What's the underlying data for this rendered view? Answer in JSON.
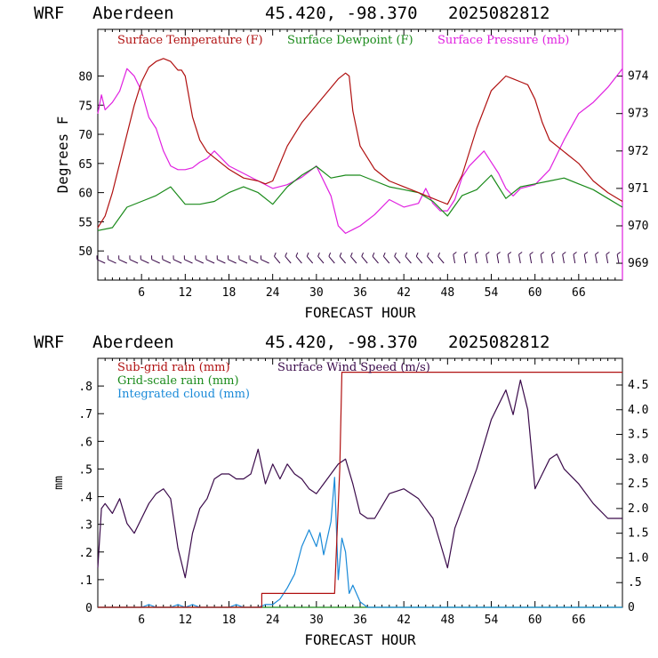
{
  "header": {
    "model": "WRF",
    "station": "Aberdeen",
    "coords": "45.420, -98.370",
    "run": "2025082812"
  },
  "colors": {
    "temperature": "#b01010",
    "dewpoint": "#1a8a1a",
    "pressure": "#e020e0",
    "subgrid_rain": "#b01010",
    "gridscale_rain": "#1a8a1a",
    "cloud": "#1a8ad8",
    "wind": "#3a0a4a",
    "barbs": "#3a0a4a"
  },
  "chart_data": [
    {
      "type": "line",
      "xlabel": "FORECAST HOUR",
      "ylabel": "Degrees F",
      "xlim": [
        0,
        72
      ],
      "xticks": [
        6,
        12,
        18,
        24,
        30,
        36,
        42,
        48,
        54,
        60,
        66
      ],
      "ylim": [
        45,
        88
      ],
      "yticks": [
        50,
        55,
        60,
        65,
        70,
        75,
        80
      ],
      "y2lim": [
        968.55,
        975.25
      ],
      "y2ticks": [
        969,
        970,
        971,
        972,
        973,
        974
      ],
      "legend": [
        "Surface Temperature (F)",
        "Surface Dewpoint (F)",
        "Surface Pressure (mb)"
      ],
      "series": [
        {
          "name": "Surface Temperature (F)",
          "axis": "left",
          "x": [
            0,
            1,
            2,
            3,
            4,
            5,
            6,
            7,
            8,
            9,
            10,
            11,
            11.5,
            12,
            13,
            14,
            15,
            16,
            18,
            20,
            22,
            23,
            24,
            26,
            28,
            30,
            32,
            33,
            34,
            34.5,
            35,
            36,
            38,
            40,
            42,
            44,
            46,
            47,
            48,
            50,
            52,
            54,
            56,
            57,
            58,
            59,
            60,
            61,
            62,
            64,
            66,
            68,
            70,
            72
          ],
          "y": [
            54,
            56,
            60,
            65,
            70,
            75,
            79,
            81.5,
            82.5,
            83,
            82.5,
            81,
            81,
            80,
            73,
            69,
            67,
            66,
            64,
            62.5,
            62,
            61.5,
            62,
            68,
            72,
            75,
            78,
            79.5,
            80.5,
            80,
            74,
            68,
            64,
            62,
            61,
            60,
            59,
            58.5,
            58,
            63,
            71,
            77.5,
            80,
            79.5,
            79,
            78.5,
            76,
            72,
            69,
            67,
            65,
            62,
            60,
            58.5
          ]
        },
        {
          "name": "Surface Dewpoint (F)",
          "axis": "left",
          "x": [
            0,
            2,
            4,
            6,
            8,
            10,
            12,
            14,
            16,
            18,
            20,
            22,
            24,
            26,
            28,
            30,
            32,
            34,
            36,
            38,
            40,
            42,
            44,
            46,
            48,
            50,
            52,
            54,
            56,
            58,
            60,
            62,
            64,
            66,
            68,
            70,
            72
          ],
          "y": [
            53.5,
            54,
            57.5,
            58.5,
            59.5,
            61,
            58,
            58,
            58.5,
            60,
            61,
            60,
            58,
            61,
            63,
            64.5,
            62.5,
            63,
            63,
            62,
            61,
            60.5,
            60,
            58.5,
            56,
            59.5,
            60.5,
            63,
            59,
            61,
            61.5,
            62,
            62.5,
            61.5,
            60.5,
            59,
            57.5
          ]
        },
        {
          "name": "Surface Pressure (mb)",
          "axis": "right",
          "x": [
            0,
            0.5,
            1,
            2,
            3,
            4,
            5,
            6,
            7,
            8,
            9,
            10,
            11,
            12,
            13,
            14,
            15,
            16,
            17,
            18,
            20,
            22,
            24,
            26,
            28,
            30,
            32,
            33,
            34,
            35,
            36,
            38,
            40,
            42,
            44,
            45,
            46,
            47,
            48,
            49,
            50,
            51,
            52,
            53,
            54,
            55,
            56,
            57,
            58,
            60,
            62,
            64,
            66,
            68,
            70,
            72
          ],
          "y": [
            973.0,
            973.5,
            973.1,
            973.3,
            973.6,
            974.2,
            974.0,
            973.6,
            972.9,
            972.6,
            972.0,
            971.6,
            971.5,
            971.5,
            971.55,
            971.7,
            971.8,
            972.0,
            971.8,
            971.6,
            971.4,
            971.2,
            971.0,
            971.1,
            971.3,
            971.6,
            970.8,
            970.0,
            969.8,
            969.9,
            970.0,
            970.3,
            970.7,
            970.5,
            970.6,
            971.0,
            970.6,
            970.4,
            970.4,
            970.7,
            971.3,
            971.6,
            971.8,
            972.0,
            971.7,
            971.4,
            971.0,
            970.8,
            971.0,
            971.1,
            971.5,
            972.3,
            973.0,
            973.3,
            973.7,
            974.2
          ]
        }
      ],
      "wind_barbs": "row of wind barbs near y=48"
    },
    {
      "type": "line",
      "xlabel": "FORECAST HOUR",
      "ylabel": "mm",
      "xlim": [
        0,
        72
      ],
      "xticks": [
        6,
        12,
        18,
        24,
        30,
        36,
        42,
        48,
        54,
        60,
        66
      ],
      "ylim": [
        0,
        0.9
      ],
      "yticks": [
        0,
        0.1,
        0.2,
        0.3,
        0.4,
        0.5,
        0.6,
        0.7,
        0.8
      ],
      "yticklabels": [
        "0",
        ".1",
        ".2",
        ".3",
        ".4",
        ".5",
        ".6",
        ".7",
        ".8"
      ],
      "y2lim": [
        0,
        5.04
      ],
      "y2ticks": [
        0,
        0.5,
        1.0,
        1.5,
        2.0,
        2.5,
        3.0,
        3.5,
        4.0,
        4.5
      ],
      "y2ticklabels": [
        "0",
        ".5",
        "1.0",
        "1.5",
        "2.0",
        "2.5",
        "3.0",
        "3.5",
        "4.0",
        "4.5"
      ],
      "legend": [
        "Sub-grid rain (mm)",
        "Grid-scale rain (mm)",
        "Integrated cloud (mm)",
        "Surface Wind Speed (m/s)"
      ],
      "series": [
        {
          "name": "Sub-grid rain (mm)",
          "axis": "left",
          "x": [
            0,
            22.5,
            22.5,
            32.5,
            33.2,
            33.5,
            72
          ],
          "y": [
            0,
            0,
            0.05,
            0.05,
            0.5,
            0.85,
            0.85
          ]
        },
        {
          "name": "Grid-scale rain (mm)",
          "axis": "left",
          "x": [
            0,
            72
          ],
          "y": [
            0,
            0
          ]
        },
        {
          "name": "Integrated cloud (mm)",
          "axis": "left",
          "x": [
            0,
            5,
            6,
            7,
            8,
            9,
            10,
            11,
            12,
            13,
            14,
            16,
            18,
            19,
            20,
            22,
            23,
            24,
            25,
            26,
            27,
            28,
            29,
            30,
            30.5,
            31,
            32,
            32.5,
            33,
            33.5,
            34,
            34.5,
            35,
            36,
            37,
            72
          ],
          "y": [
            0,
            0,
            0,
            0.01,
            0,
            0,
            0,
            0.01,
            0,
            0.01,
            0,
            0,
            0,
            0.01,
            0,
            0,
            0.01,
            0.01,
            0.03,
            0.07,
            0.12,
            0.22,
            0.28,
            0.22,
            0.27,
            0.19,
            0.31,
            0.47,
            0.1,
            0.25,
            0.2,
            0.05,
            0.08,
            0.02,
            0,
            0
          ]
        },
        {
          "name": "Surface Wind Speed (m/s)",
          "axis": "right",
          "x": [
            0,
            0.5,
            1,
            1.5,
            2,
            3,
            4,
            5,
            6,
            7,
            8,
            9,
            10,
            11,
            12,
            13,
            14,
            15,
            16,
            17,
            18,
            19,
            20,
            21,
            22,
            23,
            24,
            25,
            26,
            27,
            28,
            29,
            30,
            31,
            32,
            33,
            34,
            35,
            36,
            37,
            38,
            40,
            42,
            44,
            46,
            48,
            49,
            50,
            52,
            54,
            55,
            56,
            57,
            58,
            59,
            60,
            61,
            62,
            63,
            64,
            66,
            68,
            70,
            72
          ],
          "y": [
            0.8,
            2.0,
            2.1,
            2.0,
            1.9,
            2.2,
            1.7,
            1.5,
            1.8,
            2.1,
            2.3,
            2.4,
            2.2,
            1.2,
            0.6,
            1.5,
            2.0,
            2.2,
            2.6,
            2.7,
            2.7,
            2.6,
            2.6,
            2.7,
            3.2,
            2.5,
            2.9,
            2.6,
            2.9,
            2.7,
            2.6,
            2.4,
            2.3,
            2.5,
            2.7,
            2.9,
            3.0,
            2.5,
            1.9,
            1.8,
            1.8,
            2.3,
            2.4,
            2.2,
            1.8,
            0.8,
            1.6,
            2.0,
            2.8,
            3.8,
            4.1,
            4.4,
            3.9,
            4.6,
            4.0,
            2.4,
            2.7,
            3.0,
            3.1,
            2.8,
            2.5,
            2.1,
            1.8,
            1.8
          ]
        }
      ]
    }
  ],
  "lists": {
    "top_legend": [
      {
        "text": "Surface Temperature (F)",
        "color": "#b01010"
      },
      {
        "text": "Surface Dewpoint (F)",
        "color": "#1a8a1a"
      },
      {
        "text": "Surface Pressure (mb)",
        "color": "#e020e0"
      }
    ],
    "bot_legend_left": [
      {
        "text": "Sub-grid rain (mm)",
        "color": "#b01010"
      },
      {
        "text": "Grid-scale rain (mm)",
        "color": "#1a8a1a"
      },
      {
        "text": "Integrated cloud (mm)",
        "color": "#1a8ad8"
      }
    ],
    "bot_legend_right": [
      {
        "text": "Surface Wind Speed (m/s)",
        "color": "#3a0a4a"
      }
    ]
  }
}
